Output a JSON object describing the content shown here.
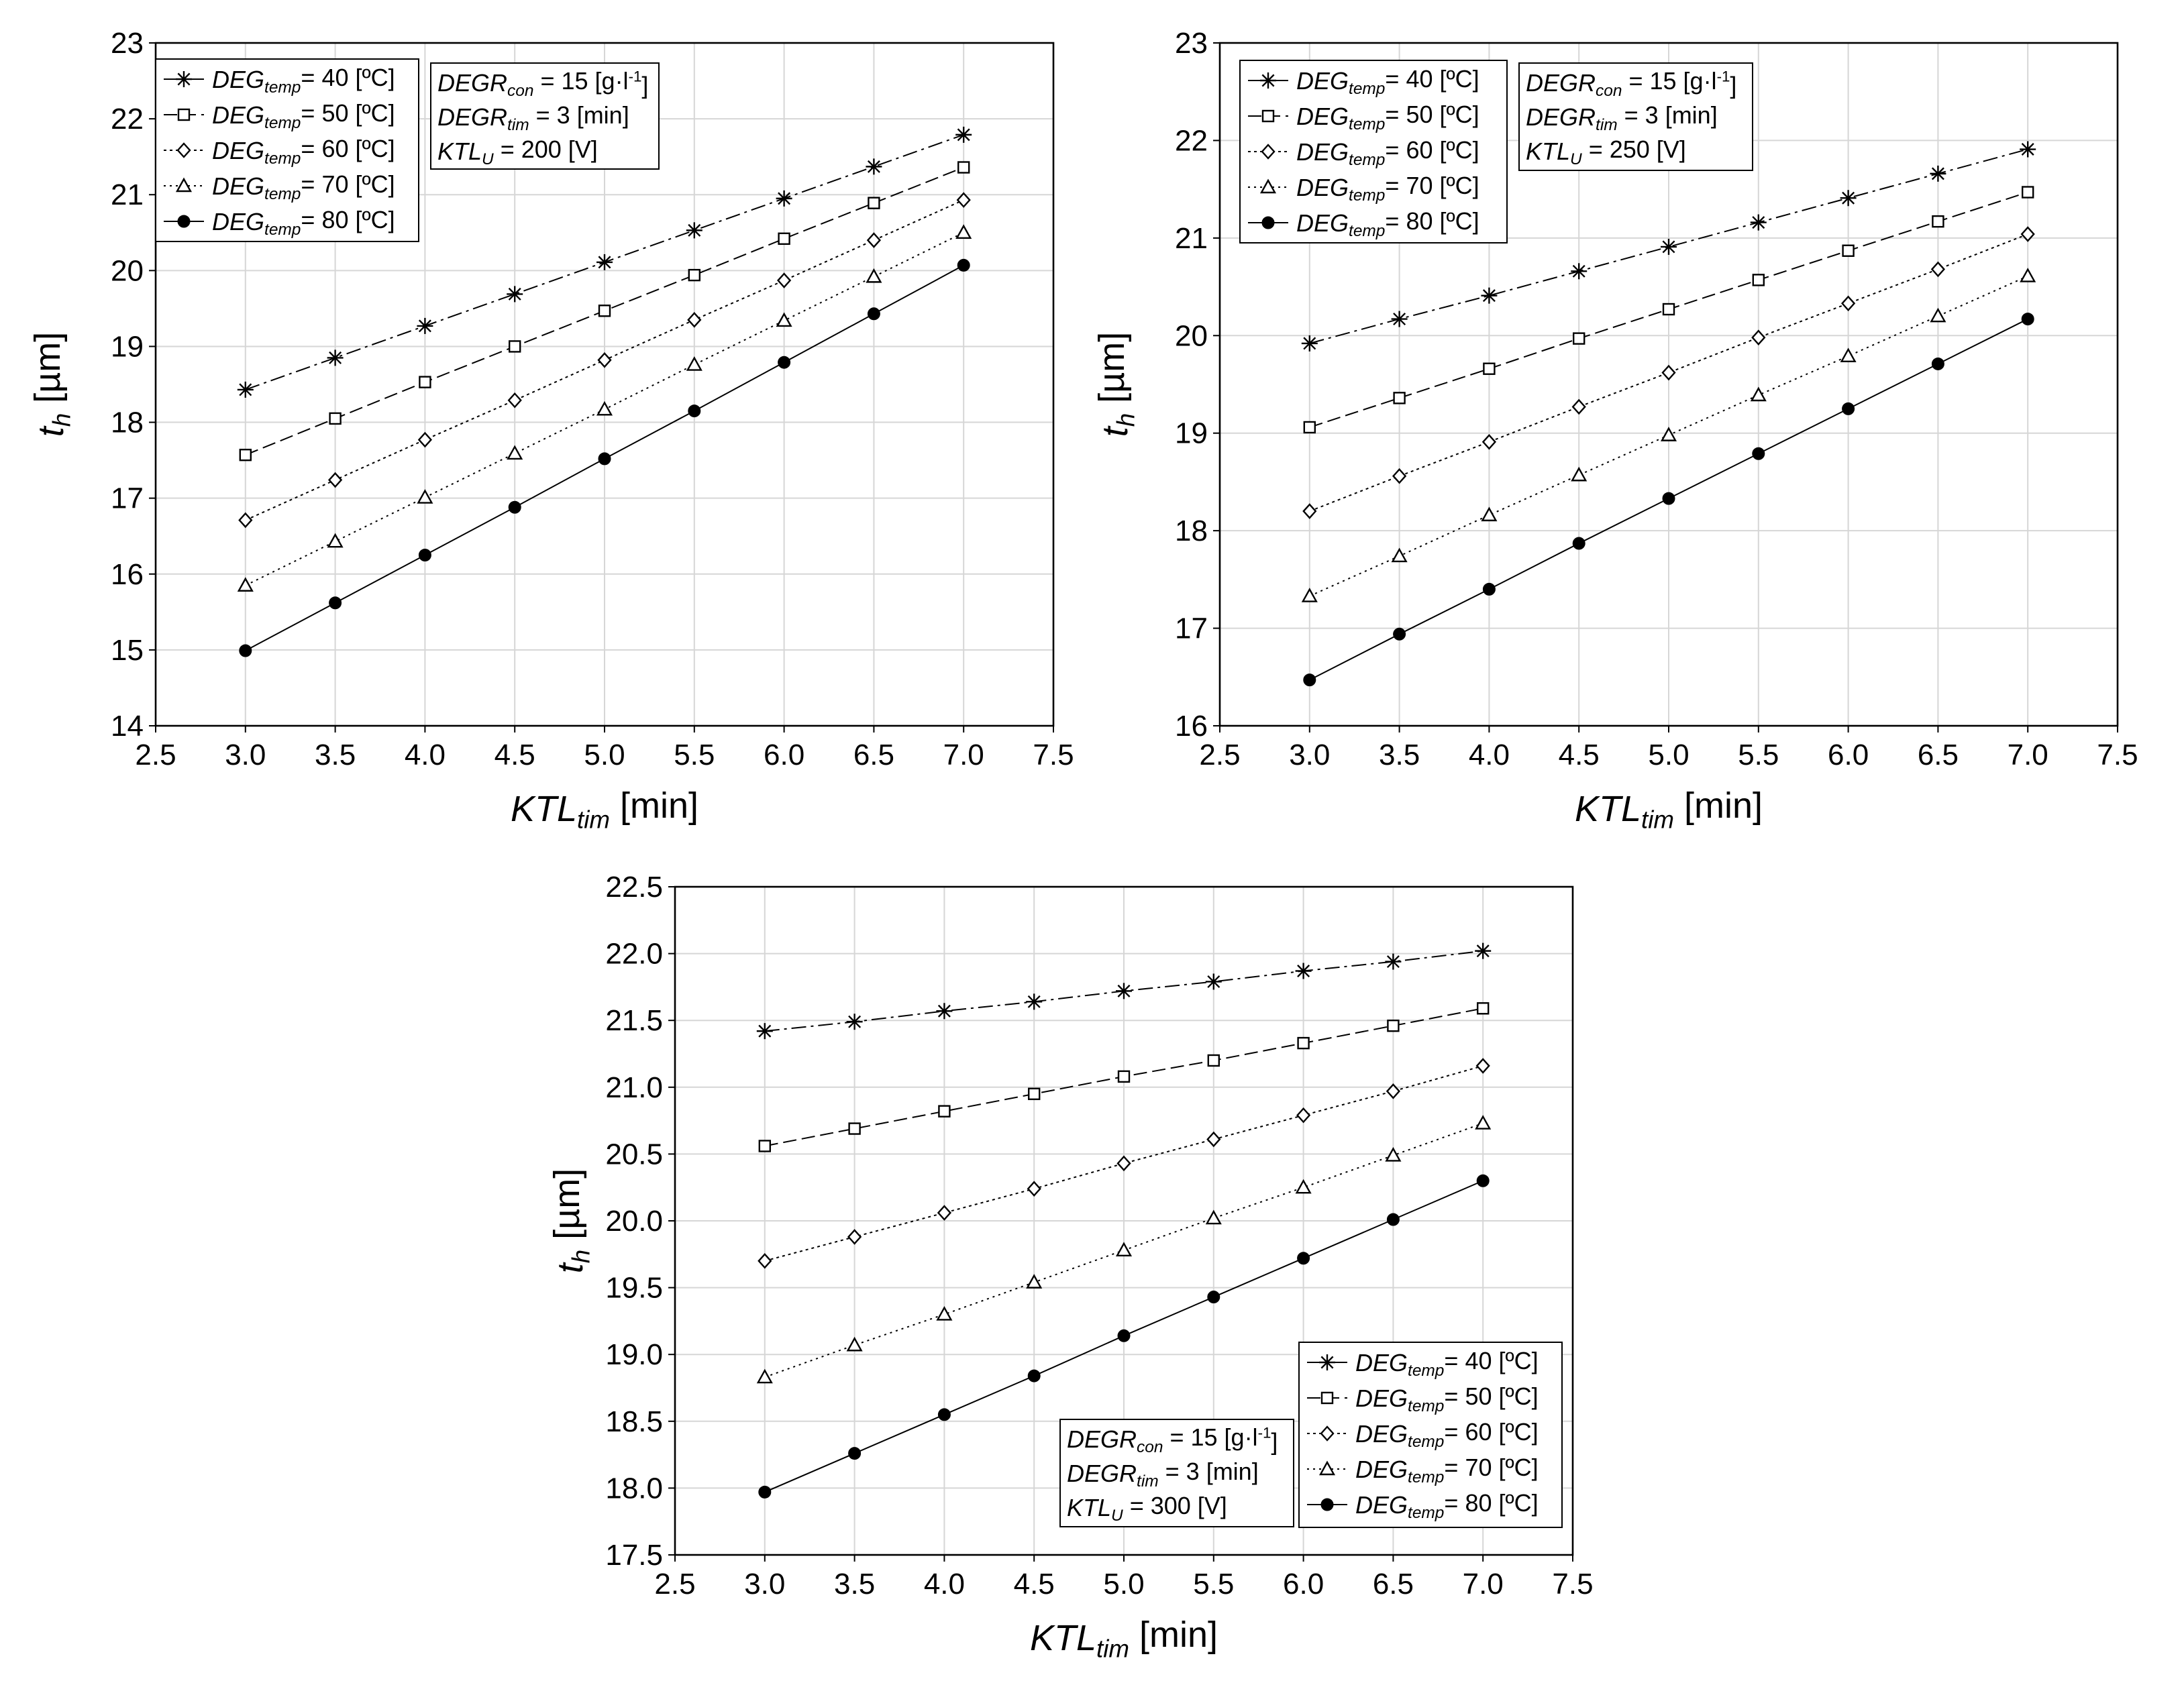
{
  "chart_data": [
    {
      "type": "line",
      "title": "",
      "xlabel": {
        "main": "KTL",
        "sub": "tim",
        "unit": " [min]"
      },
      "ylabel": {
        "main": "t",
        "sub": "h",
        "unit": " [µm]"
      },
      "xlim": [
        2.5,
        7.5
      ],
      "ylim": [
        14,
        23
      ],
      "xticks": [
        "2.5",
        "3.0",
        "3.5",
        "4.0",
        "4.5",
        "5.0",
        "5.5",
        "6.0",
        "6.5",
        "7.0",
        "7.5"
      ],
      "yticks": [
        "14",
        "15",
        "16",
        "17",
        "18",
        "19",
        "20",
        "21",
        "22",
        "23"
      ],
      "grid": true,
      "legend_position": "top-left",
      "x": [
        3.0,
        3.5,
        4.0,
        4.5,
        5.0,
        5.5,
        6.0,
        6.5,
        7.0
      ],
      "series": [
        {
          "name": {
            "main": "DEG",
            "sub": "temp",
            "rest": "= 40  [ºC]"
          },
          "marker": "asterisk",
          "values": [
            18.43,
            18.85,
            19.27,
            19.69,
            20.11,
            20.53,
            20.95,
            21.37,
            21.79
          ]
        },
        {
          "name": {
            "main": "DEG",
            "sub": "temp",
            "rest": "= 50  [ºC]"
          },
          "marker": "square",
          "values": [
            17.57,
            18.05,
            18.53,
            19.0,
            19.47,
            19.94,
            20.42,
            20.89,
            21.36
          ]
        },
        {
          "name": {
            "main": "DEG",
            "sub": "temp",
            "rest": "= 60  [ºC]"
          },
          "marker": "diamond",
          "values": [
            16.71,
            17.24,
            17.77,
            18.29,
            18.82,
            19.35,
            19.87,
            20.4,
            20.93
          ]
        },
        {
          "name": {
            "main": "DEG",
            "sub": "temp",
            "rest": "= 70  [ºC]"
          },
          "marker": "triangle",
          "values": [
            15.85,
            16.43,
            17.01,
            17.59,
            18.17,
            18.76,
            19.34,
            19.92,
            20.5
          ]
        },
        {
          "name": {
            "main": "DEG",
            "sub": "temp",
            "rest": "= 80  [ºC]"
          },
          "marker": "circle",
          "values": [
            14.99,
            15.62,
            16.25,
            16.88,
            17.52,
            18.15,
            18.79,
            19.43,
            20.07
          ]
        }
      ],
      "info_box": {
        "position": "top-left",
        "lines": [
          {
            "main": "DEGR",
            "sub": "con",
            "rest": " = 15 [g·l",
            "sup": "-1",
            "tail": "]"
          },
          {
            "main": "DEGR",
            "sub": "tim",
            "rest": " = 3 [min]",
            "sup": "",
            "tail": ""
          },
          {
            "main": "KTL",
            "sub": "U",
            "rest": " = 200 [V]",
            "sup": "",
            "tail": ""
          }
        ]
      }
    },
    {
      "type": "line",
      "title": "",
      "xlabel": {
        "main": "KTL",
        "sub": "tim",
        "unit": " [min]"
      },
      "ylabel": {
        "main": "t",
        "sub": "h",
        "unit": " [µm]"
      },
      "xlim": [
        2.5,
        7.5
      ],
      "ylim": [
        16,
        23
      ],
      "xticks": [
        "2.5",
        "3.0",
        "3.5",
        "4.0",
        "4.5",
        "5.0",
        "5.5",
        "6.0",
        "6.5",
        "7.0",
        "7.5"
      ],
      "yticks": [
        "16",
        "17",
        "18",
        "19",
        "20",
        "21",
        "22",
        "23"
      ],
      "grid": true,
      "legend_position": "top-left",
      "x": [
        3.0,
        3.5,
        4.0,
        4.5,
        5.0,
        5.5,
        6.0,
        6.5,
        7.0
      ],
      "series": [
        {
          "name": {
            "main": "DEG",
            "sub": "temp",
            "rest": "= 40  [ºC]"
          },
          "marker": "asterisk",
          "values": [
            19.92,
            20.17,
            20.41,
            20.66,
            20.91,
            21.16,
            21.41,
            21.66,
            21.91
          ]
        },
        {
          "name": {
            "main": "DEG",
            "sub": "temp",
            "rest": "= 50  [ºC]"
          },
          "marker": "square",
          "values": [
            19.06,
            19.36,
            19.66,
            19.97,
            20.27,
            20.57,
            20.87,
            21.17,
            21.47
          ]
        },
        {
          "name": {
            "main": "DEG",
            "sub": "temp",
            "rest": "= 60  [ºC]"
          },
          "marker": "diamond",
          "values": [
            18.2,
            18.56,
            18.91,
            19.27,
            19.62,
            19.98,
            20.33,
            20.68,
            21.04
          ]
        },
        {
          "name": {
            "main": "DEG",
            "sub": "temp",
            "rest": "= 70  [ºC]"
          },
          "marker": "triangle",
          "values": [
            17.33,
            17.74,
            18.16,
            18.57,
            18.98,
            19.39,
            19.79,
            20.2,
            20.61
          ]
        },
        {
          "name": {
            "main": "DEG",
            "sub": "temp",
            "rest": "= 80  [ºC]"
          },
          "marker": "circle",
          "values": [
            16.47,
            16.94,
            17.4,
            17.87,
            18.33,
            18.79,
            19.25,
            19.71,
            20.17
          ]
        }
      ],
      "info_box": {
        "position": "top-left",
        "lines": [
          {
            "main": "DEGR",
            "sub": "con",
            "rest": " = 15 [g·l",
            "sup": "-1",
            "tail": "]"
          },
          {
            "main": "DEGR",
            "sub": "tim",
            "rest": " = 3 [min]",
            "sup": "",
            "tail": ""
          },
          {
            "main": "KTL",
            "sub": "U",
            "rest": " = 250 [V]",
            "sup": "",
            "tail": ""
          }
        ]
      }
    },
    {
      "type": "line",
      "title": "",
      "xlabel": {
        "main": "KTL",
        "sub": "tim",
        "unit": " [min]"
      },
      "ylabel": {
        "main": "t",
        "sub": "h",
        "unit": " [µm]"
      },
      "xlim": [
        2.5,
        7.5
      ],
      "ylim": [
        17.5,
        22.5
      ],
      "xticks": [
        "2.5",
        "3.0",
        "3.5",
        "4.0",
        "4.5",
        "5.0",
        "5.5",
        "6.0",
        "6.5",
        "7.0",
        "7.5"
      ],
      "yticks": [
        "17.5",
        "18.0",
        "18.5",
        "19.0",
        "19.5",
        "20.0",
        "20.5",
        "21.0",
        "21.5",
        "22.0",
        "22.5"
      ],
      "grid": true,
      "legend_position": "bottom-right",
      "x": [
        3.0,
        3.5,
        4.0,
        4.5,
        5.0,
        5.5,
        6.0,
        6.5,
        7.0
      ],
      "series": [
        {
          "name": {
            "main": "DEG",
            "sub": "temp",
            "rest": "= 40  [ºC]"
          },
          "marker": "asterisk",
          "values": [
            21.42,
            21.49,
            21.57,
            21.64,
            21.72,
            21.79,
            21.87,
            21.94,
            22.02
          ]
        },
        {
          "name": {
            "main": "DEG",
            "sub": "temp",
            "rest": "= 50  [ºC]"
          },
          "marker": "square",
          "values": [
            20.56,
            20.69,
            20.82,
            20.95,
            21.08,
            21.2,
            21.33,
            21.46,
            21.59
          ]
        },
        {
          "name": {
            "main": "DEG",
            "sub": "temp",
            "rest": "= 60  [ºC]"
          },
          "marker": "diamond",
          "values": [
            19.7,
            19.88,
            20.06,
            20.24,
            20.43,
            20.61,
            20.79,
            20.97,
            21.16
          ]
        },
        {
          "name": {
            "main": "DEG",
            "sub": "temp",
            "rest": "= 70  [ºC]"
          },
          "marker": "triangle",
          "values": [
            18.83,
            19.07,
            19.3,
            19.54,
            19.78,
            20.02,
            20.25,
            20.49,
            20.73
          ]
        },
        {
          "name": {
            "main": "DEG",
            "sub": "temp",
            "rest": "= 80  [ºC]"
          },
          "marker": "circle",
          "values": [
            17.97,
            18.26,
            18.55,
            18.84,
            19.14,
            19.43,
            19.72,
            20.01,
            20.3
          ]
        }
      ],
      "info_box": {
        "position": "bottom-center",
        "lines": [
          {
            "main": "DEGR",
            "sub": "con",
            "rest": " = 15 [g·l",
            "sup": "-1",
            "tail": "]"
          },
          {
            "main": "DEGR",
            "sub": "tim",
            "rest": " = 3 [min]",
            "sup": "",
            "tail": ""
          },
          {
            "main": "KTL",
            "sub": "U",
            "rest": " = 300 [V]",
            "sup": "",
            "tail": ""
          }
        ]
      }
    }
  ]
}
